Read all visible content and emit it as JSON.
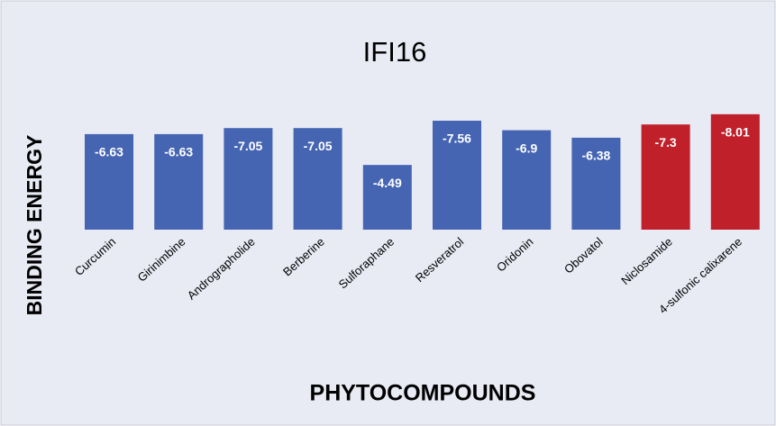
{
  "chart_data": {
    "type": "bar",
    "title": "IFI16",
    "x_label": "PHYTOCOMPOUNDS",
    "y_label": "BINDING ENERGY",
    "categories": [
      "Curcumin",
      "Girinimbine",
      "Andrographolide",
      "Berberine",
      "Sulforaphane",
      "Resveratrol",
      "Oridonin",
      "Obovatol",
      "Niclosamide",
      "4-sulfonic calixarene"
    ],
    "values": [
      -6.63,
      -6.63,
      -7.05,
      -7.05,
      -4.49,
      -7.56,
      -6.9,
      -6.38,
      -7.3,
      -8.01
    ],
    "colors": [
      "#4565b3",
      "#4565b3",
      "#4565b3",
      "#4565b3",
      "#4565b3",
      "#4565b3",
      "#4565b3",
      "#4565b3",
      "#c0202a",
      "#c0202a"
    ],
    "ylim": [
      0,
      -9
    ]
  }
}
